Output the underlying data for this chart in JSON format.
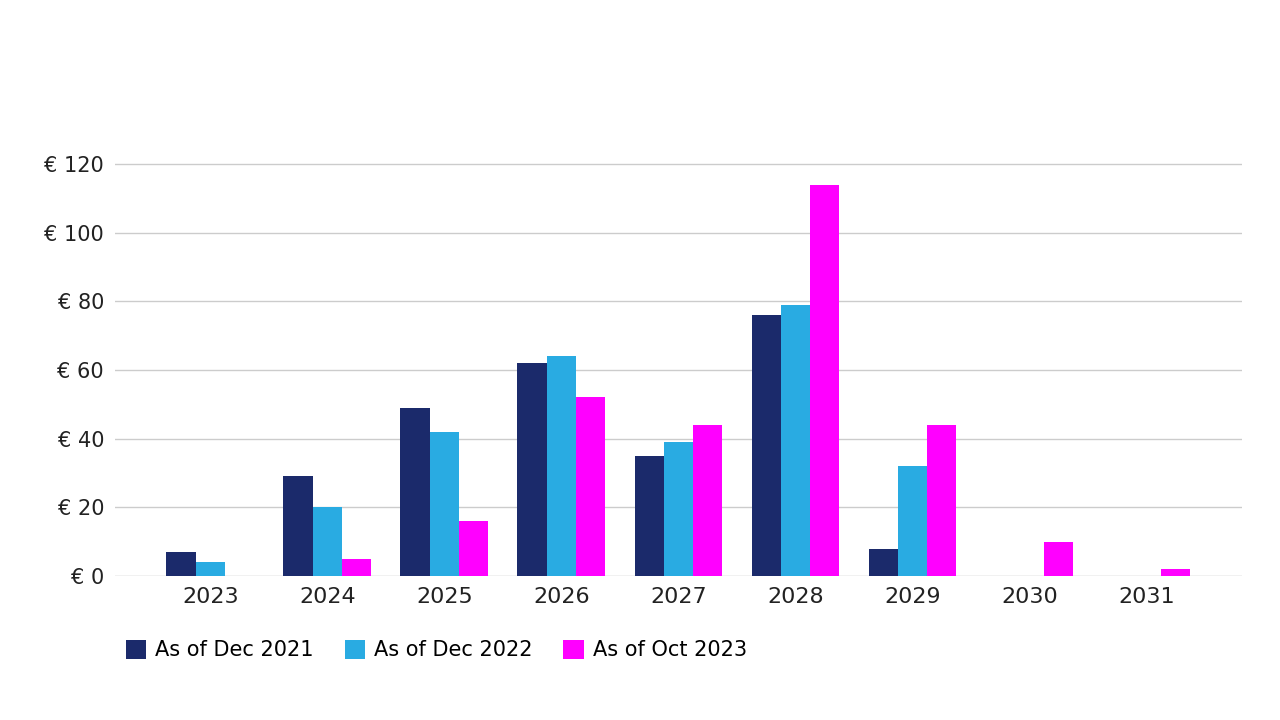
{
  "categories": [
    "2023",
    "2024",
    "2025",
    "2026",
    "2027",
    "2028",
    "2029",
    "2030",
    "2031"
  ],
  "series": {
    "As of Dec 2021": [
      7,
      29,
      49,
      62,
      35,
      76,
      8,
      0,
      0
    ],
    "As of Dec 2022": [
      4,
      20,
      42,
      64,
      39,
      79,
      32,
      0,
      0
    ],
    "As of Oct 2023": [
      0,
      5,
      16,
      52,
      44,
      114,
      44,
      10,
      2
    ]
  },
  "colors": {
    "As of Dec 2021": "#1B2A6B",
    "As of Dec 2022": "#29ABE2",
    "As of Oct 2023": "#FF00FF"
  },
  "ylim": [
    0,
    130
  ],
  "yticks": [
    0,
    20,
    40,
    60,
    80,
    100,
    120
  ],
  "ylabel_prefix": "€ ",
  "background_color": "#FFFFFF",
  "grid_color": "#CCCCCC",
  "bar_width": 0.25,
  "legend_labels": [
    "As of Dec 2021",
    "As of Dec 2022",
    "As of Oct 2023"
  ]
}
